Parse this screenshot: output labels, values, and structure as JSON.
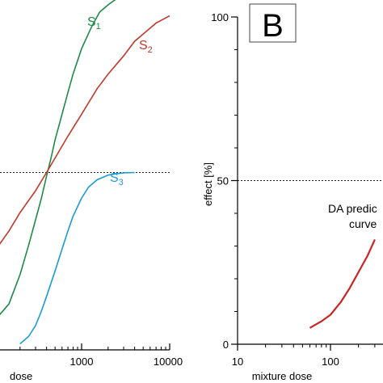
{
  "chart_data": [
    {
      "type": "line",
      "xscale": "log",
      "xlim": [
        100,
        10000
      ],
      "ylim": [
        0,
        100
      ],
      "xlabel": "dose",
      "xticks": [
        "1000",
        "10000"
      ],
      "reference_line": {
        "y": 50,
        "style": "dotted"
      },
      "series": [
        {
          "name": "S1",
          "label_letter": "S",
          "label_sub": "1",
          "color": "#1e8a46",
          "x": [
            100,
            150,
            200,
            250,
            300,
            350,
            400,
            450,
            500,
            600,
            700,
            800,
            1000,
            1300,
            1600,
            2000,
            2600,
            3200,
            4000
          ],
          "y": [
            9,
            14,
            22,
            30,
            37,
            43,
            49,
            54,
            59,
            66,
            72,
            77,
            84,
            90,
            94,
            96,
            98,
            99,
            99.5
          ]
        },
        {
          "name": "S2",
          "label_letter": "S",
          "label_sub": "2",
          "color": "#c0392b",
          "x": [
            100,
            150,
            200,
            300,
            400,
            500,
            700,
            1000,
            1500,
            2000,
            3000,
            4000,
            5000,
            7000,
            10000
          ],
          "y": [
            28,
            34,
            39,
            45,
            50,
            54,
            60,
            66,
            73,
            77,
            82,
            86,
            88,
            91,
            93
          ]
        },
        {
          "name": "S3",
          "label_letter": "S",
          "label_sub": "3",
          "color": "#1a9bd7",
          "x": [
            200,
            250,
            300,
            350,
            400,
            500,
            600,
            700,
            800,
            1000,
            1200,
            1500,
            2000,
            2500,
            3000,
            4000
          ],
          "y": [
            3,
            5,
            8,
            12,
            16,
            23,
            29,
            34,
            38,
            43,
            46,
            48,
            49.3,
            49.7,
            49.9,
            50
          ]
        }
      ]
    },
    {
      "type": "line",
      "panel_label": "B",
      "xscale": "log",
      "xlim": [
        10,
        300
      ],
      "ylim": [
        0,
        100
      ],
      "xlabel": "mixture dose",
      "ylabel": "effect [%]",
      "xticks": [
        "10",
        "100"
      ],
      "yticks": [
        "0",
        "50",
        "100"
      ],
      "reference_line": {
        "y": 50,
        "style": "dotted"
      },
      "annotation": [
        "DA predic",
        "curve"
      ],
      "series": [
        {
          "color": "#cc2222",
          "x": [
            60,
            80,
            100,
            130,
            160,
            200,
            250,
            300
          ],
          "y": [
            5,
            7,
            9,
            13,
            17,
            22,
            27,
            32
          ]
        }
      ]
    }
  ]
}
